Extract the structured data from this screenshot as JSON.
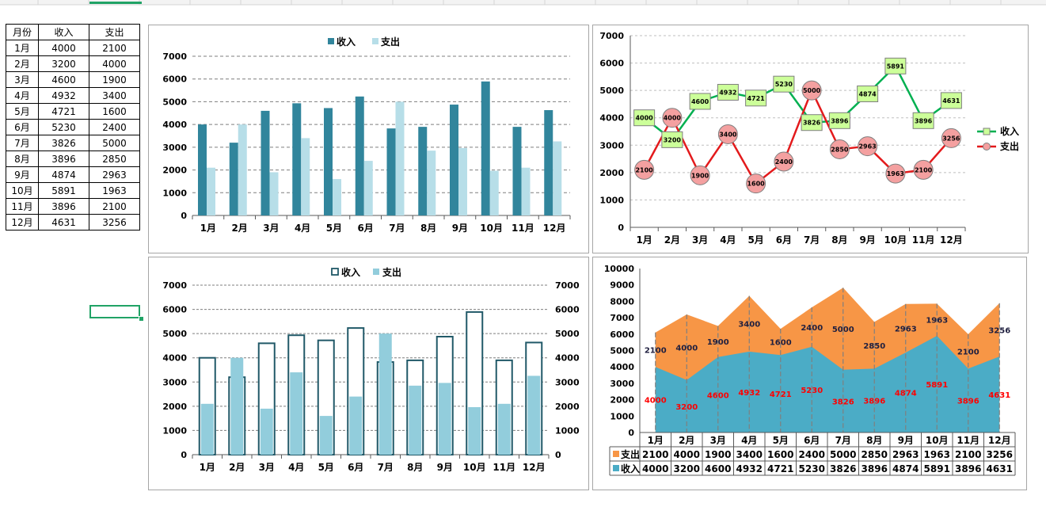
{
  "table": {
    "headers": [
      "月份",
      "收入",
      "支出"
    ],
    "rows": [
      [
        "1月",
        "4000",
        "2100"
      ],
      [
        "2月",
        "3200",
        "4000"
      ],
      [
        "3月",
        "4600",
        "1900"
      ],
      [
        "4月",
        "4932",
        "3400"
      ],
      [
        "5月",
        "4721",
        "1600"
      ],
      [
        "6月",
        "5230",
        "2400"
      ],
      [
        "7月",
        "3826",
        "5000"
      ],
      [
        "8月",
        "3896",
        "2850"
      ],
      [
        "9月",
        "4874",
        "2963"
      ],
      [
        "10月",
        "5891",
        "1963"
      ],
      [
        "11月",
        "3896",
        "2100"
      ],
      [
        "12月",
        "4631",
        "3256"
      ]
    ]
  },
  "chart_data": [
    {
      "type": "bar",
      "categories": [
        "1月",
        "2月",
        "3月",
        "4月",
        "5月",
        "6月",
        "7月",
        "8月",
        "9月",
        "10月",
        "11月",
        "12月"
      ],
      "series": [
        {
          "name": "收入",
          "values": [
            4000,
            3200,
            4600,
            4932,
            4721,
            5230,
            3826,
            3896,
            4874,
            5891,
            3896,
            4631
          ],
          "color": "#31859c"
        },
        {
          "name": "支出",
          "values": [
            2100,
            4000,
            1900,
            3400,
            1600,
            2400,
            5000,
            2850,
            2963,
            1963,
            2100,
            3256
          ],
          "color": "#b7dee8"
        }
      ],
      "ylim": [
        0,
        7000
      ],
      "yticks": [
        0,
        1000,
        2000,
        3000,
        4000,
        5000,
        6000,
        7000
      ],
      "grid": "dashed",
      "legend": "top"
    },
    {
      "type": "line",
      "categories": [
        "1月",
        "2月",
        "3月",
        "4月",
        "5月",
        "6月",
        "7月",
        "8月",
        "9月",
        "10月",
        "11月",
        "12月"
      ],
      "series": [
        {
          "name": "收入",
          "values": [
            4000,
            3200,
            4600,
            4932,
            4721,
            5230,
            3826,
            3896,
            4874,
            5891,
            3896,
            4631
          ],
          "color": "#00b050",
          "marker": "square",
          "marker_fill": "#ccff99"
        },
        {
          "name": "支出",
          "values": [
            2100,
            4000,
            1900,
            3400,
            1600,
            2400,
            5000,
            2850,
            2963,
            1963,
            2100,
            3256
          ],
          "color": "#e31a1c",
          "marker": "circle",
          "marker_fill": "#f4a0a0"
        }
      ],
      "ylim": [
        0,
        7000
      ],
      "yticks": [
        0,
        1000,
        2000,
        3000,
        4000,
        5000,
        6000,
        7000
      ],
      "data_labels": true,
      "grid": "dashed",
      "legend": "right"
    },
    {
      "type": "bar",
      "categories": [
        "1月",
        "2月",
        "3月",
        "4月",
        "5月",
        "6月",
        "7月",
        "8月",
        "9月",
        "10月",
        "11月",
        "12月"
      ],
      "series": [
        {
          "name": "收入",
          "values": [
            4000,
            3200,
            4600,
            4932,
            4721,
            5230,
            3826,
            3896,
            4874,
            5891,
            3896,
            4631
          ],
          "color": "#215968",
          "style": "outline"
        },
        {
          "name": "支出",
          "values": [
            2100,
            4000,
            1900,
            3400,
            1600,
            2400,
            5000,
            2850,
            2963,
            1963,
            2100,
            3256
          ],
          "color": "#92cddc",
          "style": "filled"
        }
      ],
      "ylim": [
        0,
        7000
      ],
      "yticks": [
        0,
        1000,
        2000,
        3000,
        4000,
        5000,
        6000,
        7000
      ],
      "secondary_axis": true,
      "grid": "dashed",
      "legend": "top"
    },
    {
      "type": "area",
      "stacked": true,
      "categories": [
        "1月",
        "2月",
        "3月",
        "4月",
        "5月",
        "6月",
        "7月",
        "8月",
        "9月",
        "10月",
        "11月",
        "12月"
      ],
      "series": [
        {
          "name": "收入",
          "values": [
            4000,
            3200,
            4600,
            4932,
            4721,
            5230,
            3826,
            3896,
            4874,
            5891,
            3896,
            4631
          ],
          "color": "#4bacc6",
          "label_color": "#ff0000"
        },
        {
          "name": "支出",
          "values": [
            2100,
            4000,
            1900,
            3400,
            1600,
            2400,
            5000,
            2850,
            2963,
            1963,
            2100,
            3256
          ],
          "color": "#f79646",
          "label_color": "#1f1f3f"
        }
      ],
      "ylim": [
        0,
        10000
      ],
      "yticks": [
        0,
        1000,
        2000,
        3000,
        4000,
        5000,
        6000,
        7000,
        8000,
        9000,
        10000
      ],
      "data_table": true,
      "drop_lines": true
    }
  ]
}
